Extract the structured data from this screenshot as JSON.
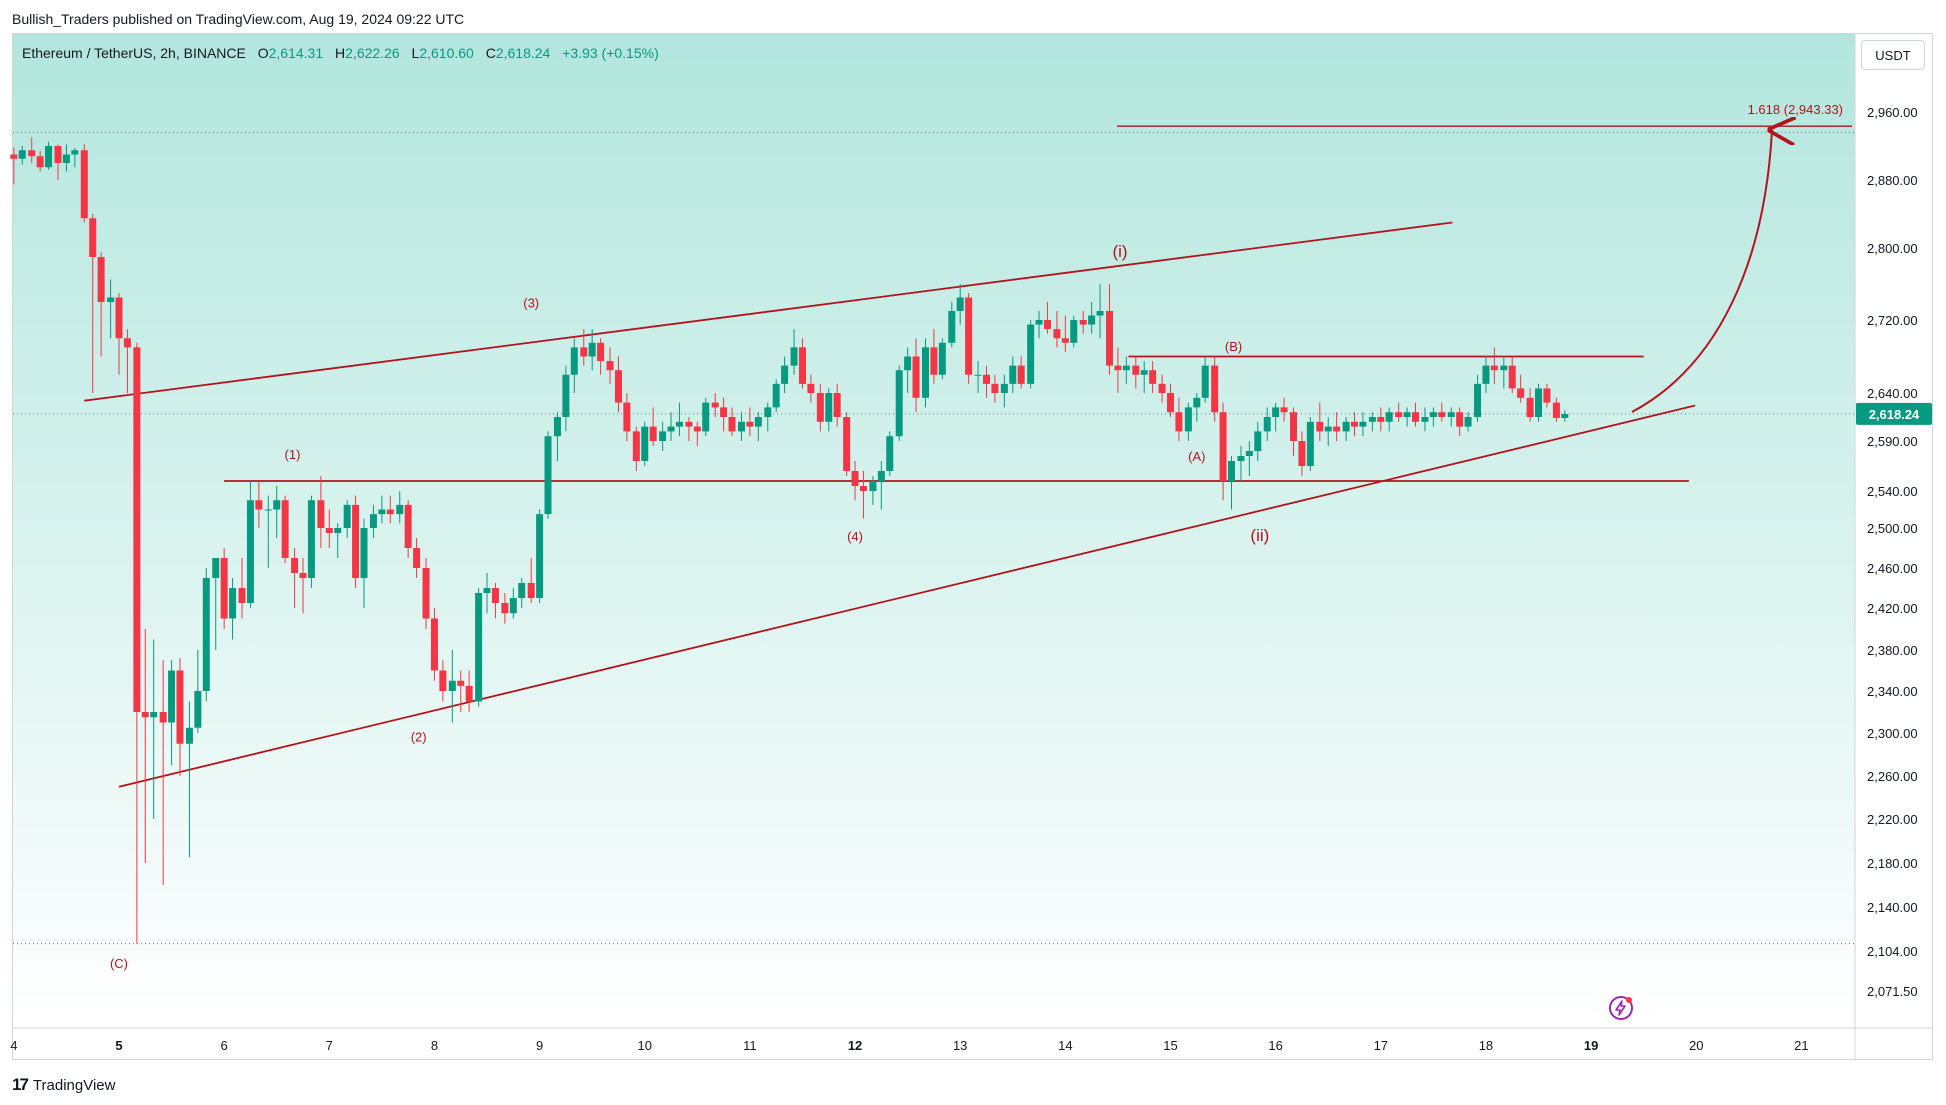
{
  "header": {
    "published_by": "Bullish_Traders published on TradingView.com, Aug 19, 2024 09:22 UTC"
  },
  "legend": {
    "symbol": "Ethereum / TetherUS, 2h, BINANCE",
    "o_label": "O",
    "o_value": "2,614.31",
    "h_label": "H",
    "h_value": "2,622.26",
    "l_label": "L",
    "l_value": "2,610.60",
    "c_label": "C",
    "c_value": "2,618.24",
    "change": "+3.93 (+0.15%)"
  },
  "currency_button": "USDT",
  "footer": {
    "logo_mark": "17",
    "logo_text": "TradingView"
  },
  "colors": {
    "up": "#089981",
    "down": "#f23645",
    "annotation": "#b2141d",
    "bg_top": "#b2e6dd",
    "bg_bottom": "#ffffff"
  },
  "icons": [
    "tradingview-logo-icon",
    "lightning-bolt-icon"
  ],
  "chart_data": {
    "type": "candlestick",
    "title": "",
    "xlabel": "",
    "ylabel": "",
    "ylim": [
      2040,
      3020
    ],
    "grid": false,
    "x_ticks": [
      "4",
      "5",
      "6",
      "7",
      "8",
      "9",
      "10",
      "11",
      "12",
      "13",
      "14",
      "15",
      "16",
      "17",
      "18",
      "19",
      "20",
      "21"
    ],
    "x_ticks_bold": [
      "5",
      "12",
      "19"
    ],
    "y_ticks": [
      "2,960.00",
      "2,880.00",
      "2,800.00",
      "2,720.00",
      "2,640.00",
      "2,590.00",
      "2,540.00",
      "2,500.00",
      "2,460.00",
      "2,420.00",
      "2,380.00",
      "2,340.00",
      "2,300.00",
      "2,260.00",
      "2,220.00",
      "2,180.00",
      "2,140.00",
      "2,104.00",
      "2,071.50"
    ],
    "last_price_label": "2,618.24",
    "last_price": 2618.24,
    "fib_label": "1.618 (2,943.33)",
    "fib_level": 2943.33,
    "dotted_levels": [
      2936,
      2618.24,
      2110
    ],
    "wave_labels": [
      {
        "text": "(C)",
        "day": 5.0,
        "price": 2090
      },
      {
        "text": "(1)",
        "day": 6.65,
        "price": 2572
      },
      {
        "text": "(2)",
        "day": 7.85,
        "price": 2292
      },
      {
        "text": "(3)",
        "day": 8.92,
        "price": 2734
      },
      {
        "text": "(4)",
        "day": 12.0,
        "price": 2487
      },
      {
        "text": "(i)",
        "day": 14.52,
        "price": 2790
      },
      {
        "text": "(A)",
        "day": 15.25,
        "price": 2570
      },
      {
        "text": "(B)",
        "day": 15.6,
        "price": 2686
      },
      {
        "text": "(ii)",
        "day": 15.85,
        "price": 2487
      }
    ],
    "trendlines": [
      {
        "name": "upper-wedge",
        "from": [
          4.67,
          2632
        ],
        "to": [
          17.68,
          2830
        ]
      },
      {
        "name": "lower-wedge",
        "from": [
          5.0,
          2250
        ],
        "to": [
          19.99,
          2627
        ]
      },
      {
        "name": "support",
        "from": [
          6.0,
          2550
        ],
        "to": [
          19.93,
          2550
        ]
      },
      {
        "name": "resistance",
        "from": [
          14.6,
          2680
        ],
        "to": [
          19.5,
          2680
        ]
      }
    ],
    "candles": [
      [
        4.0,
        2910,
        2918,
        2875,
        2905
      ],
      [
        4.08,
        2905,
        2920,
        2898,
        2915
      ],
      [
        4.17,
        2915,
        2930,
        2900,
        2908
      ],
      [
        4.25,
        2908,
        2914,
        2890,
        2895
      ],
      [
        4.33,
        2895,
        2925,
        2892,
        2920
      ],
      [
        4.42,
        2920,
        2922,
        2880,
        2900
      ],
      [
        4.5,
        2900,
        2922,
        2890,
        2910
      ],
      [
        4.58,
        2910,
        2918,
        2895,
        2915
      ],
      [
        4.67,
        2915,
        2922,
        2830,
        2835
      ],
      [
        4.75,
        2835,
        2840,
        2640,
        2790
      ],
      [
        4.83,
        2790,
        2795,
        2680,
        2740
      ],
      [
        4.92,
        2740,
        2765,
        2700,
        2745
      ],
      [
        5.0,
        2745,
        2750,
        2660,
        2700
      ],
      [
        5.08,
        2700,
        2710,
        2640,
        2690
      ],
      [
        5.17,
        2690,
        2695,
        2110,
        2320
      ],
      [
        5.25,
        2320,
        2400,
        2180,
        2315
      ],
      [
        5.33,
        2315,
        2390,
        2220,
        2320
      ],
      [
        5.42,
        2320,
        2370,
        2160,
        2310
      ],
      [
        5.5,
        2310,
        2370,
        2270,
        2360
      ],
      [
        5.58,
        2360,
        2372,
        2260,
        2290
      ],
      [
        5.67,
        2290,
        2330,
        2185,
        2305
      ],
      [
        5.75,
        2305,
        2380,
        2300,
        2340
      ],
      [
        5.83,
        2340,
        2460,
        2330,
        2450
      ],
      [
        5.92,
        2450,
        2470,
        2380,
        2470
      ],
      [
        6.0,
        2470,
        2480,
        2400,
        2410
      ],
      [
        6.08,
        2410,
        2450,
        2390,
        2440
      ],
      [
        6.17,
        2440,
        2470,
        2410,
        2425
      ],
      [
        6.25,
        2425,
        2550,
        2420,
        2530
      ],
      [
        6.33,
        2530,
        2550,
        2500,
        2520
      ],
      [
        6.42,
        2520,
        2535,
        2460,
        2520
      ],
      [
        6.5,
        2520,
        2545,
        2490,
        2530
      ],
      [
        6.58,
        2530,
        2535,
        2465,
        2470
      ],
      [
        6.67,
        2470,
        2480,
        2420,
        2455
      ],
      [
        6.75,
        2455,
        2470,
        2415,
        2450
      ],
      [
        6.83,
        2450,
        2535,
        2440,
        2530
      ],
      [
        6.92,
        2530,
        2555,
        2480,
        2500
      ],
      [
        7.0,
        2500,
        2520,
        2480,
        2495
      ],
      [
        7.08,
        2495,
        2505,
        2470,
        2500
      ],
      [
        7.17,
        2500,
        2530,
        2490,
        2525
      ],
      [
        7.25,
        2525,
        2535,
        2440,
        2450
      ],
      [
        7.33,
        2450,
        2510,
        2420,
        2500
      ],
      [
        7.42,
        2500,
        2525,
        2490,
        2515
      ],
      [
        7.5,
        2515,
        2535,
        2505,
        2520
      ],
      [
        7.58,
        2520,
        2535,
        2505,
        2515
      ],
      [
        7.67,
        2515,
        2540,
        2505,
        2525
      ],
      [
        7.75,
        2525,
        2530,
        2470,
        2480
      ],
      [
        7.83,
        2480,
        2490,
        2450,
        2460
      ],
      [
        7.92,
        2460,
        2470,
        2400,
        2410
      ],
      [
        8.0,
        2410,
        2420,
        2350,
        2360
      ],
      [
        8.08,
        2360,
        2370,
        2330,
        2340
      ],
      [
        8.17,
        2340,
        2380,
        2310,
        2350
      ],
      [
        8.25,
        2350,
        2360,
        2320,
        2345
      ],
      [
        8.33,
        2345,
        2360,
        2320,
        2330
      ],
      [
        8.42,
        2330,
        2440,
        2325,
        2435
      ],
      [
        8.5,
        2435,
        2455,
        2415,
        2440
      ],
      [
        8.58,
        2440,
        2445,
        2410,
        2425
      ],
      [
        8.67,
        2425,
        2435,
        2405,
        2415
      ],
      [
        8.75,
        2415,
        2440,
        2410,
        2430
      ],
      [
        8.83,
        2430,
        2450,
        2420,
        2445
      ],
      [
        8.92,
        2445,
        2470,
        2425,
        2430
      ],
      [
        9.0,
        2430,
        2520,
        2425,
        2515
      ],
      [
        9.08,
        2515,
        2600,
        2510,
        2595
      ],
      [
        9.17,
        2595,
        2620,
        2570,
        2615
      ],
      [
        9.25,
        2615,
        2670,
        2600,
        2660
      ],
      [
        9.33,
        2660,
        2700,
        2640,
        2690
      ],
      [
        9.42,
        2690,
        2710,
        2670,
        2680
      ],
      [
        9.5,
        2680,
        2710,
        2665,
        2695
      ],
      [
        9.58,
        2695,
        2700,
        2660,
        2675
      ],
      [
        9.67,
        2675,
        2690,
        2650,
        2665
      ],
      [
        9.75,
        2665,
        2680,
        2620,
        2630
      ],
      [
        9.83,
        2630,
        2640,
        2590,
        2600
      ],
      [
        9.92,
        2600,
        2605,
        2560,
        2570
      ],
      [
        10.0,
        2570,
        2610,
        2565,
        2605
      ],
      [
        10.08,
        2605,
        2625,
        2585,
        2590
      ],
      [
        10.17,
        2590,
        2610,
        2580,
        2600
      ],
      [
        10.25,
        2600,
        2620,
        2590,
        2605
      ],
      [
        10.33,
        2605,
        2630,
        2595,
        2610
      ],
      [
        10.42,
        2610,
        2615,
        2590,
        2605
      ],
      [
        10.5,
        2605,
        2610,
        2585,
        2600
      ],
      [
        10.58,
        2600,
        2635,
        2595,
        2630
      ],
      [
        10.67,
        2630,
        2640,
        2615,
        2625
      ],
      [
        10.75,
        2625,
        2635,
        2600,
        2615
      ],
      [
        10.83,
        2615,
        2625,
        2595,
        2600
      ],
      [
        10.92,
        2600,
        2620,
        2590,
        2610
      ],
      [
        11.0,
        2610,
        2625,
        2595,
        2605
      ],
      [
        11.08,
        2605,
        2620,
        2590,
        2615
      ],
      [
        11.17,
        2615,
        2630,
        2600,
        2625
      ],
      [
        11.25,
        2625,
        2655,
        2620,
        2650
      ],
      [
        11.33,
        2650,
        2680,
        2640,
        2670
      ],
      [
        11.42,
        2670,
        2710,
        2660,
        2690
      ],
      [
        11.5,
        2690,
        2700,
        2645,
        2650
      ],
      [
        11.58,
        2650,
        2660,
        2630,
        2640
      ],
      [
        11.67,
        2640,
        2650,
        2600,
        2610
      ],
      [
        11.75,
        2610,
        2645,
        2600,
        2640
      ],
      [
        11.83,
        2640,
        2650,
        2605,
        2615
      ],
      [
        11.92,
        2615,
        2620,
        2555,
        2560
      ],
      [
        12.0,
        2560,
        2570,
        2530,
        2545
      ],
      [
        12.08,
        2545,
        2560,
        2510,
        2540
      ],
      [
        12.17,
        2540,
        2555,
        2525,
        2550
      ],
      [
        12.25,
        2550,
        2570,
        2520,
        2560
      ],
      [
        12.33,
        2560,
        2600,
        2555,
        2595
      ],
      [
        12.42,
        2595,
        2670,
        2590,
        2665
      ],
      [
        12.5,
        2665,
        2690,
        2640,
        2680
      ],
      [
        12.58,
        2680,
        2700,
        2620,
        2635
      ],
      [
        12.67,
        2635,
        2700,
        2625,
        2690
      ],
      [
        12.75,
        2690,
        2710,
        2650,
        2660
      ],
      [
        12.83,
        2660,
        2700,
        2655,
        2695
      ],
      [
        12.92,
        2695,
        2740,
        2690,
        2730
      ],
      [
        13.0,
        2730,
        2760,
        2715,
        2745
      ],
      [
        13.08,
        2745,
        2750,
        2650,
        2660
      ],
      [
        13.17,
        2660,
        2675,
        2640,
        2660
      ],
      [
        13.25,
        2660,
        2670,
        2635,
        2650
      ],
      [
        13.33,
        2650,
        2660,
        2630,
        2640
      ],
      [
        13.42,
        2640,
        2660,
        2625,
        2650
      ],
      [
        13.5,
        2650,
        2680,
        2640,
        2670
      ],
      [
        13.58,
        2670,
        2680,
        2645,
        2650
      ],
      [
        13.67,
        2650,
        2720,
        2645,
        2715
      ],
      [
        13.75,
        2715,
        2730,
        2700,
        2720
      ],
      [
        13.83,
        2720,
        2740,
        2705,
        2710
      ],
      [
        13.92,
        2710,
        2730,
        2690,
        2700
      ],
      [
        14.0,
        2700,
        2725,
        2685,
        2695
      ],
      [
        14.08,
        2695,
        2725,
        2690,
        2720
      ],
      [
        14.17,
        2720,
        2730,
        2705,
        2715
      ],
      [
        14.25,
        2715,
        2740,
        2705,
        2725
      ],
      [
        14.33,
        2725,
        2760,
        2700,
        2730
      ],
      [
        14.42,
        2730,
        2760,
        2660,
        2670
      ],
      [
        14.5,
        2670,
        2690,
        2640,
        2665
      ],
      [
        14.58,
        2665,
        2680,
        2650,
        2670
      ],
      [
        14.67,
        2670,
        2680,
        2645,
        2660
      ],
      [
        14.75,
        2660,
        2675,
        2640,
        2665
      ],
      [
        14.83,
        2665,
        2675,
        2640,
        2650
      ],
      [
        14.92,
        2650,
        2660,
        2630,
        2640
      ],
      [
        15.0,
        2640,
        2650,
        2615,
        2620
      ],
      [
        15.08,
        2620,
        2635,
        2590,
        2600
      ],
      [
        15.17,
        2600,
        2630,
        2590,
        2625
      ],
      [
        15.25,
        2625,
        2640,
        2610,
        2635
      ],
      [
        15.33,
        2635,
        2680,
        2630,
        2670
      ],
      [
        15.42,
        2670,
        2680,
        2610,
        2620
      ],
      [
        15.5,
        2620,
        2630,
        2530,
        2550
      ],
      [
        15.58,
        2550,
        2575,
        2520,
        2570
      ],
      [
        15.67,
        2570,
        2585,
        2550,
        2575
      ],
      [
        15.75,
        2575,
        2590,
        2555,
        2580
      ],
      [
        15.83,
        2580,
        2610,
        2570,
        2600
      ],
      [
        15.92,
        2600,
        2625,
        2590,
        2615
      ],
      [
        16.0,
        2615,
        2630,
        2600,
        2625
      ],
      [
        16.08,
        2625,
        2635,
        2610,
        2620
      ],
      [
        16.17,
        2620,
        2625,
        2575,
        2590
      ],
      [
        16.25,
        2590,
        2600,
        2555,
        2565
      ],
      [
        16.33,
        2565,
        2615,
        2560,
        2610
      ],
      [
        16.42,
        2610,
        2630,
        2590,
        2600
      ],
      [
        16.5,
        2600,
        2615,
        2585,
        2605
      ],
      [
        16.58,
        2605,
        2620,
        2590,
        2600
      ],
      [
        16.67,
        2600,
        2615,
        2590,
        2610
      ],
      [
        16.75,
        2610,
        2620,
        2595,
        2605
      ],
      [
        16.83,
        2605,
        2620,
        2595,
        2610
      ],
      [
        16.92,
        2610,
        2620,
        2600,
        2615
      ],
      [
        17.0,
        2615,
        2625,
        2600,
        2610
      ],
      [
        17.08,
        2610,
        2625,
        2600,
        2620
      ],
      [
        17.17,
        2620,
        2630,
        2610,
        2615
      ],
      [
        17.25,
        2615,
        2625,
        2605,
        2620
      ],
      [
        17.33,
        2620,
        2630,
        2605,
        2610
      ],
      [
        17.42,
        2610,
        2625,
        2600,
        2615
      ],
      [
        17.5,
        2615,
        2625,
        2605,
        2620
      ],
      [
        17.58,
        2620,
        2630,
        2610,
        2615
      ],
      [
        17.67,
        2615,
        2625,
        2605,
        2620
      ],
      [
        17.75,
        2620,
        2625,
        2595,
        2605
      ],
      [
        17.83,
        2605,
        2620,
        2600,
        2615
      ],
      [
        17.92,
        2615,
        2660,
        2610,
        2650
      ],
      [
        18.0,
        2650,
        2680,
        2640,
        2670
      ],
      [
        18.08,
        2670,
        2690,
        2650,
        2665
      ],
      [
        18.17,
        2665,
        2680,
        2645,
        2670
      ],
      [
        18.25,
        2670,
        2680,
        2640,
        2645
      ],
      [
        18.33,
        2645,
        2660,
        2630,
        2635
      ],
      [
        18.42,
        2635,
        2645,
        2610,
        2615
      ],
      [
        18.5,
        2615,
        2650,
        2610,
        2645
      ],
      [
        18.58,
        2645,
        2650,
        2625,
        2630
      ],
      [
        18.67,
        2630,
        2635,
        2610,
        2614
      ],
      [
        18.75,
        2614,
        2622,
        2610,
        2618
      ]
    ]
  }
}
